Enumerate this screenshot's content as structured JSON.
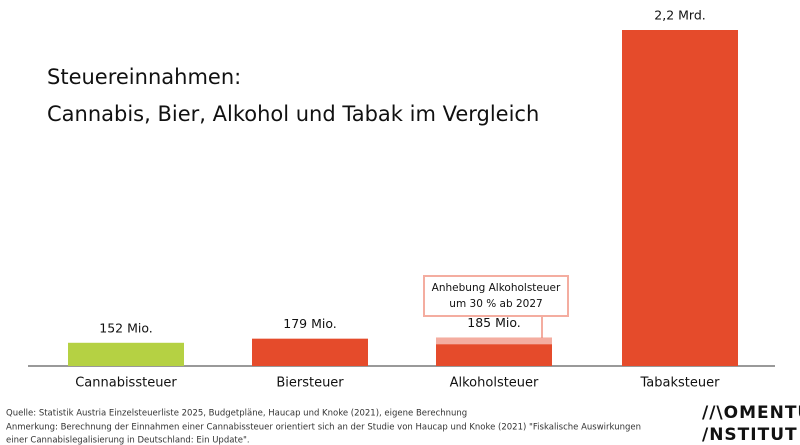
{
  "chart_data": {
    "type": "bar",
    "title_lines": [
      "Steuereinnahmen:",
      "Cannabis, Bier, Alkohol und Tabak im Vergleich"
    ],
    "categories": [
      "Cannabissteuer",
      "Biersteuer",
      "Alkoholsteuer",
      "Tabaksteuer"
    ],
    "values": [
      152,
      179,
      185,
      2200
    ],
    "value_labels": [
      "152 Mio.",
      "179 Mio.",
      "185 Mio.",
      "2,2 Mrd."
    ],
    "colors": [
      "#b5d143",
      "#e54b2b",
      "#e54b2b",
      "#e54b2b"
    ],
    "increase": [
      null,
      null,
      43,
      null
    ],
    "increase_color": "#f4ada0",
    "annotation": [
      "Anhebung Alkoholsteuer",
      "um 30 % ab 2027"
    ],
    "ylim": [
      0,
      2200
    ]
  },
  "footer": {
    "source": "Quelle: Statistik Austria Einzelsteuerliste 2025, Budgetpläne, Haucap und Knoke (2021), eigene Berechnung",
    "note_lines": [
      "Anmerkung:  Berechnung der Einnahmen einer Cannabissteuer orientiert sich an der Studie von Haucap und Knoke (2021) \"Fiskalische Auswirkungen",
      "einer Cannabislegalisierung in Deutschland: Ein Update\"."
    ],
    "logo": [
      "//\\OMENTUM",
      "/NSTITUT"
    ]
  }
}
